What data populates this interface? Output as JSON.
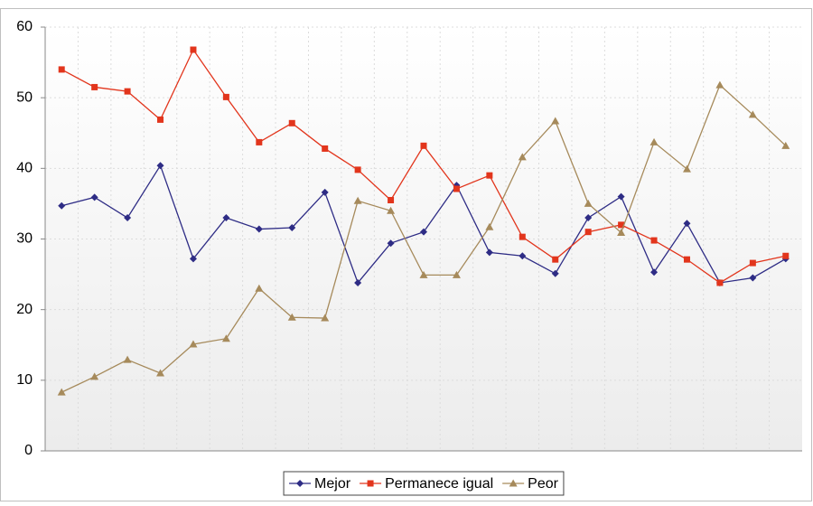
{
  "chart_data": {
    "type": "line",
    "categories": [
      null,
      null,
      null,
      null,
      null,
      null,
      null,
      null,
      null,
      null,
      null,
      null,
      null,
      null,
      null,
      null,
      null,
      null,
      null,
      null,
      null,
      null,
      null
    ],
    "series": [
      {
        "name": "Mejor",
        "color": "#2e2c85",
        "marker": "diamond",
        "values": [
          34.7,
          35.9,
          33,
          40.4,
          27.2,
          33,
          31.4,
          31.6,
          36.6,
          23.8,
          29.4,
          31,
          37.6,
          28.1,
          27.6,
          25.1,
          33,
          36,
          25.3,
          32.2,
          23.8,
          24.5,
          27.2
        ]
      },
      {
        "name": "Permanece igual",
        "color": "#e2351c",
        "marker": "square",
        "values": [
          54,
          51.5,
          50.9,
          46.9,
          56.8,
          50.1,
          43.7,
          46.4,
          42.8,
          39.8,
          35.5,
          43.2,
          37.1,
          39,
          30.3,
          27.1,
          31,
          32,
          29.8,
          27.1,
          23.8,
          26.6,
          27.6
        ]
      },
      {
        "name": "Peor",
        "color": "#a68a5b",
        "marker": "triangle",
        "values": [
          8.3,
          10.5,
          12.9,
          11,
          15.1,
          15.9,
          23,
          18.9,
          18.8,
          35.4,
          34,
          24.9,
          24.9,
          31.7,
          41.6,
          46.7,
          35,
          30.9,
          43.7,
          39.9,
          51.8,
          47.6,
          43.2
        ]
      }
    ],
    "ylim": [
      0,
      60
    ],
    "yticks": [
      0,
      10,
      20,
      30,
      40,
      50,
      60
    ],
    "grid": true,
    "legend": "bottom"
  }
}
